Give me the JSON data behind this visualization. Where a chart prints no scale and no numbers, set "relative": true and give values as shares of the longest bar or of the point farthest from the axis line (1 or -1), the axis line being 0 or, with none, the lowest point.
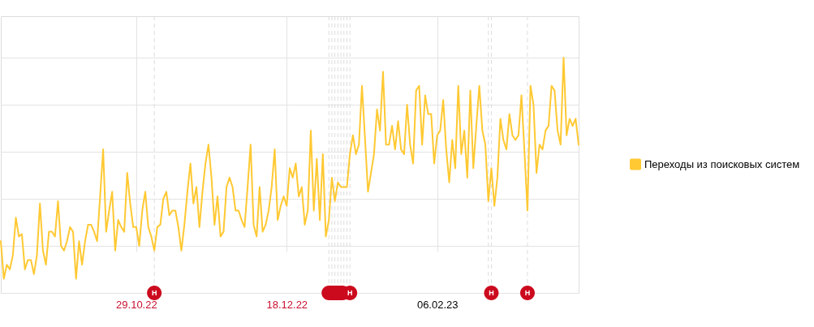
{
  "chart_data": {
    "type": "line",
    "relative": true,
    "x": [
      "2022-09-14",
      "2022-09-15",
      "2022-09-16",
      "2022-09-17",
      "2022-09-18",
      "2022-09-19",
      "2022-09-20",
      "2022-09-21",
      "2022-09-22",
      "2022-09-23",
      "2022-09-24",
      "2022-09-25",
      "2022-09-26",
      "2022-09-27",
      "2022-09-28",
      "2022-09-29",
      "2022-09-30",
      "2022-10-01",
      "2022-10-02",
      "2022-10-03",
      "2022-10-04",
      "2022-10-05",
      "2022-10-06",
      "2022-10-07",
      "2022-10-08",
      "2022-10-09",
      "2022-10-10",
      "2022-10-11",
      "2022-10-12",
      "2022-10-13",
      "2022-10-14",
      "2022-10-15",
      "2022-10-16",
      "2022-10-17",
      "2022-10-18",
      "2022-10-19",
      "2022-10-20",
      "2022-10-21",
      "2022-10-22",
      "2022-10-23",
      "2022-10-24",
      "2022-10-25",
      "2022-10-26",
      "2022-10-27",
      "2022-10-28",
      "2022-10-29",
      "2022-10-30",
      "2022-10-31",
      "2022-11-01",
      "2022-11-02",
      "2022-11-03",
      "2022-11-04",
      "2022-11-05",
      "2022-11-06",
      "2022-11-07",
      "2022-11-08",
      "2022-11-09",
      "2022-11-10",
      "2022-11-11",
      "2022-11-12",
      "2022-11-13",
      "2022-11-14",
      "2022-11-15",
      "2022-11-16",
      "2022-11-17",
      "2022-11-18",
      "2022-11-19",
      "2022-11-20",
      "2022-11-21",
      "2022-11-22",
      "2022-11-23",
      "2022-11-24",
      "2022-11-25",
      "2022-11-26",
      "2022-11-27",
      "2022-11-28",
      "2022-11-29",
      "2022-11-30",
      "2022-12-01",
      "2022-12-02",
      "2022-12-03",
      "2022-12-04",
      "2022-12-05",
      "2022-12-06",
      "2022-12-07",
      "2022-12-08",
      "2022-12-09",
      "2022-12-10",
      "2022-12-11",
      "2022-12-12",
      "2022-12-13",
      "2022-12-14",
      "2022-12-15",
      "2022-12-16",
      "2022-12-17",
      "2022-12-18",
      "2022-12-19",
      "2022-12-20",
      "2022-12-21",
      "2022-12-22",
      "2022-12-23",
      "2022-12-24",
      "2022-12-25",
      "2022-12-26",
      "2022-12-27",
      "2022-12-28",
      "2022-12-29",
      "2022-12-30",
      "2022-12-31",
      "2023-01-01",
      "2023-01-02",
      "2023-01-03",
      "2023-01-04",
      "2023-01-05",
      "2023-01-06",
      "2023-01-07",
      "2023-01-08",
      "2023-01-09",
      "2023-01-10",
      "2023-01-11",
      "2023-01-12",
      "2023-01-13",
      "2023-01-14",
      "2023-01-15",
      "2023-01-16",
      "2023-01-17",
      "2023-01-18",
      "2023-01-19",
      "2023-01-20",
      "2023-01-21",
      "2023-01-22",
      "2023-01-23",
      "2023-01-24",
      "2023-01-25",
      "2023-01-26",
      "2023-01-27",
      "2023-01-28",
      "2023-01-29",
      "2023-01-30",
      "2023-01-31",
      "2023-02-01",
      "2023-02-02",
      "2023-02-03",
      "2023-02-04",
      "2023-02-05",
      "2023-02-06",
      "2023-02-07",
      "2023-02-08",
      "2023-02-09",
      "2023-02-10",
      "2023-02-11",
      "2023-02-12",
      "2023-02-13",
      "2023-02-14",
      "2023-02-15",
      "2023-02-16",
      "2023-02-17",
      "2023-02-18",
      "2023-02-19",
      "2023-02-20",
      "2023-02-21",
      "2023-02-22",
      "2023-02-23",
      "2023-02-24",
      "2023-02-25",
      "2023-02-26",
      "2023-02-27",
      "2023-02-28",
      "2023-03-01",
      "2023-03-02",
      "2023-03-03",
      "2023-03-04",
      "2023-03-05",
      "2023-03-06",
      "2023-03-07",
      "2023-03-08",
      "2023-03-09",
      "2023-03-10",
      "2023-03-11",
      "2023-03-12",
      "2023-03-13",
      "2023-03-14",
      "2023-03-15",
      "2023-03-16",
      "2023-03-17",
      "2023-03-18",
      "2023-03-19",
      "2023-03-20",
      "2023-03-21",
      "2023-03-22",
      "2023-03-23",
      "2023-03-24",
      "2023-03-25"
    ],
    "series": [
      {
        "name": "Переходы из поисковых систем",
        "color": "#ffc933",
        "values": [
          0.22,
          0.06,
          0.12,
          0.1,
          0.16,
          0.32,
          0.24,
          0.25,
          0.1,
          0.14,
          0.14,
          0.08,
          0.16,
          0.38,
          0.18,
          0.12,
          0.26,
          0.26,
          0.24,
          0.39,
          0.2,
          0.18,
          0.22,
          0.28,
          0.26,
          0.06,
          0.22,
          0.12,
          0.22,
          0.29,
          0.29,
          0.26,
          0.22,
          0.41,
          0.61,
          0.26,
          0.35,
          0.43,
          0.18,
          0.31,
          0.28,
          0.26,
          0.51,
          0.38,
          0.28,
          0.28,
          0.2,
          0.35,
          0.43,
          0.28,
          0.24,
          0.18,
          0.28,
          0.29,
          0.4,
          0.43,
          0.33,
          0.35,
          0.35,
          0.28,
          0.18,
          0.29,
          0.43,
          0.55,
          0.38,
          0.45,
          0.28,
          0.43,
          0.55,
          0.63,
          0.49,
          0.29,
          0.41,
          0.24,
          0.26,
          0.45,
          0.49,
          0.45,
          0.35,
          0.35,
          0.31,
          0.28,
          0.45,
          0.63,
          0.29,
          0.24,
          0.45,
          0.26,
          0.29,
          0.35,
          0.45,
          0.61,
          0.31,
          0.37,
          0.41,
          0.37,
          0.53,
          0.49,
          0.55,
          0.41,
          0.45,
          0.29,
          0.35,
          0.69,
          0.35,
          0.57,
          0.31,
          0.59,
          0.24,
          0.31,
          0.49,
          0.39,
          0.47,
          0.45,
          0.45,
          0.45,
          0.59,
          0.67,
          0.59,
          0.63,
          0.88,
          0.66,
          0.43,
          0.51,
          0.59,
          0.78,
          0.69,
          0.94,
          0.63,
          0.63,
          0.71,
          0.61,
          0.73,
          0.61,
          0.59,
          0.8,
          0.63,
          0.55,
          0.86,
          0.88,
          0.63,
          0.84,
          0.76,
          0.76,
          0.55,
          0.67,
          0.69,
          0.82,
          0.61,
          0.47,
          0.65,
          0.53,
          0.88,
          0.59,
          0.69,
          0.49,
          0.86,
          0.53,
          0.71,
          0.88,
          0.69,
          0.63,
          0.39,
          0.53,
          0.37,
          0.49,
          0.74,
          0.65,
          0.61,
          0.76,
          0.67,
          0.65,
          0.67,
          0.84,
          0.6,
          0.35,
          0.88,
          0.8,
          0.51,
          0.63,
          0.61,
          0.69,
          0.71,
          0.88,
          0.86,
          0.69,
          0.63,
          1.0,
          0.67,
          0.74,
          0.71,
          0.74,
          0.63
        ]
      }
    ],
    "xlim": [
      "2022-09-14",
      "2023-03-25"
    ],
    "xticks": [
      {
        "value": "2022-10-29",
        "label": "29.10.22"
      },
      {
        "value": "2022-12-18",
        "label": "18.12.22"
      },
      {
        "value": "2023-02-06",
        "label": "06.02.23"
      }
    ],
    "grid": true,
    "legend": "right",
    "tick_labels": "x",
    "ref_lines": [
      {
        "axis": "x",
        "value": "2022-11-04",
        "label": "Н",
        "color": "#dddddd",
        "line_style": "dashed"
      },
      {
        "axis": "x",
        "value": "2023-01-01",
        "color": "#dddddd",
        "line_style": "dashed"
      },
      {
        "axis": "x",
        "value": "2023-01-02",
        "color": "#dddddd",
        "line_style": "dashed"
      },
      {
        "axis": "x",
        "value": "2023-01-03",
        "color": "#dddddd",
        "line_style": "dashed"
      },
      {
        "axis": "x",
        "value": "2023-01-04",
        "color": "#dddddd",
        "line_style": "dashed"
      },
      {
        "axis": "x",
        "value": "2023-01-05",
        "color": "#dddddd",
        "line_style": "dashed"
      },
      {
        "axis": "x",
        "value": "2023-01-06",
        "color": "#dddddd",
        "line_style": "dashed"
      },
      {
        "axis": "x",
        "value": "2023-01-07",
        "color": "#dddddd",
        "line_style": "dashed"
      },
      {
        "axis": "x",
        "value": "2023-01-08",
        "label": "Н",
        "color": "#dddddd",
        "line_style": "dashed"
      },
      {
        "axis": "x",
        "value": "2023-02-23",
        "color": "#dddddd",
        "line_style": "dashed"
      },
      {
        "axis": "x",
        "value": "2023-02-24",
        "label": "Н",
        "color": "#dddddd",
        "line_style": "dashed"
      },
      {
        "axis": "x",
        "value": "2023-03-08",
        "label": "Н",
        "color": "#dddddd",
        "line_style": "dashed"
      }
    ]
  }
}
